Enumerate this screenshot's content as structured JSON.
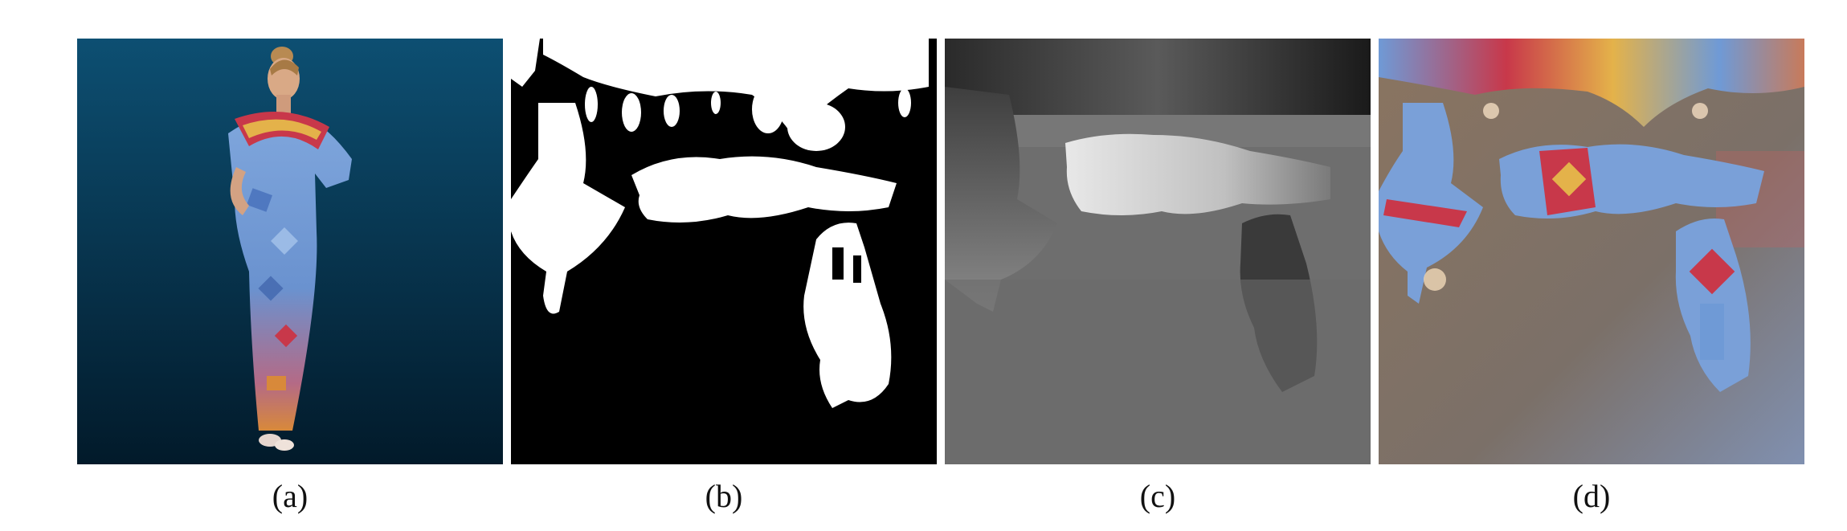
{
  "panels": [
    {
      "id": "a",
      "caption": "(a)",
      "content": "photo-person-patterned-dress"
    },
    {
      "id": "b",
      "caption": "(b)",
      "content": "binary-mask-uv-layout"
    },
    {
      "id": "c",
      "caption": "(c)",
      "content": "grayscale-depth-map-uv"
    },
    {
      "id": "d",
      "caption": "(d)",
      "content": "color-texture-atlas-uv"
    }
  ],
  "colors": {
    "background_a_top": "#0d4f72",
    "background_a_bottom": "#021a2a",
    "mask_fg": "#ffffff",
    "mask_bg": "#000000",
    "depth_bg": "#6e6e6e",
    "dress_blue": "#6f9ad6",
    "dress_red": "#c8384a",
    "dress_orange": "#d8893a",
    "texture_bg_left": "#8a7460",
    "texture_bg_right": "#8090b0"
  }
}
